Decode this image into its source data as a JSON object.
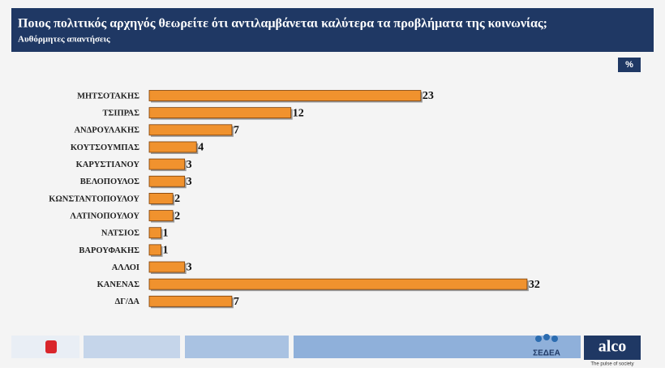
{
  "chart_data": {
    "type": "hbar",
    "title": "Ποιος πολιτικός αρχηγός θεωρείτε ότι αντιλαμβάνεται καλύτερα τα προβλήματα της κοινωνίας;",
    "subtitle": "Αυθόρμητες απαντήσεις",
    "unit_badge": "%",
    "categories": [
      "ΜΗΤΣΟΤΑΚΗΣ",
      "ΤΣΙΠΡΑΣ",
      "ΑΝΔΡΟΥΛΑΚΗΣ",
      "ΚΟΥΤΣΟΥΜΠΑΣ",
      "ΚΑΡΥΣΤΙΑΝΟΥ",
      "ΒΕΛΟΠΟΥΛΟΣ",
      "ΚΩΝΣΤΑΝΤΟΠΟΥΛΟΥ",
      "ΛΑΤΙΝΟΠΟΥΛΟΥ",
      "ΝΑΤΣΙΟΣ",
      "ΒΑΡΟΥΦΑΚΗΣ",
      "ΑΛΛΟΙ",
      "ΚΑΝΕΝΑΣ",
      "ΔΓ/ΔΑ"
    ],
    "values": [
      23,
      12,
      7,
      4,
      3,
      3,
      2,
      2,
      1,
      1,
      3,
      32,
      7
    ],
    "color": "#f0922e"
  },
  "footer": {
    "sedea": "ΣΕΔΕΑ",
    "brand": "alco",
    "tagline": "The pulse of society"
  }
}
